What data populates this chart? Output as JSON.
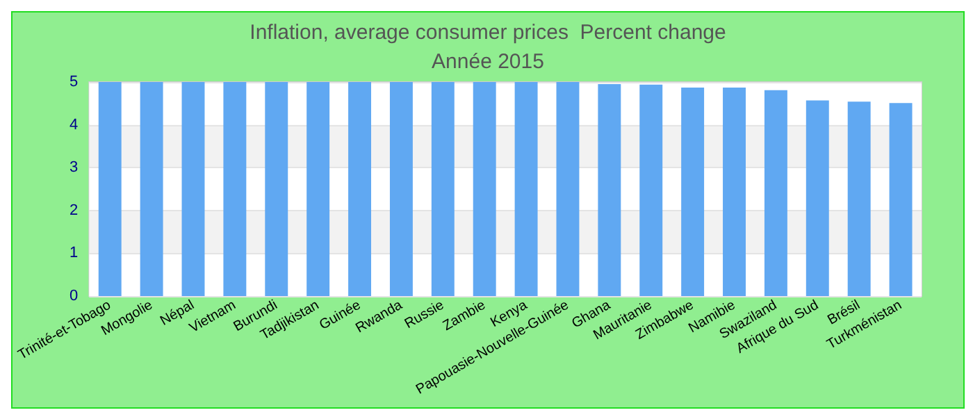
{
  "chart_data": {
    "type": "bar",
    "title": "Inflation, average consumer prices  Percent change",
    "subtitle": "Année 2015",
    "categories": [
      "Trinité-et-Tobago",
      "Mongolie",
      "Népal",
      "Vietnam",
      "Burundi",
      "Tadjikistan",
      "Guinée",
      "Rwanda",
      "Russie",
      "Zambie",
      "Kenya",
      "Papouasie-Nouvelle-Guinée",
      "Ghana",
      "Mauritanie",
      "Zimbabwe",
      "Namibie",
      "Swaziland",
      "Afrique du Sud",
      "Brésil",
      "Turkménistan"
    ],
    "values": [
      5,
      5,
      5,
      5,
      5,
      5,
      5,
      5,
      5,
      5,
      5,
      5,
      4.95,
      4.94,
      4.87,
      4.87,
      4.81,
      4.57,
      4.54,
      4.51
    ],
    "color": "#60a8f2",
    "ylim": [
      0,
      5
    ],
    "yticks": [
      0,
      1,
      2,
      3,
      4,
      5
    ],
    "grid": "y"
  }
}
